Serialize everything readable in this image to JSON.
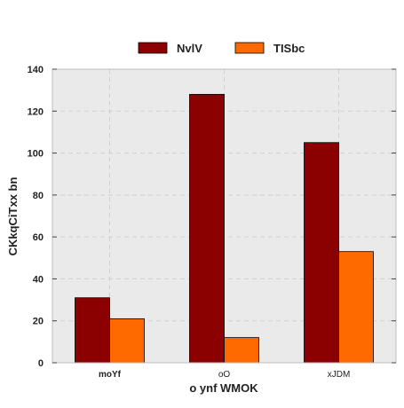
{
  "chart_data": {
    "type": "bar",
    "title": "",
    "xlabel": "o ynf WMOK",
    "ylabel": "CKkqCiTxx bn",
    "categories": [
      "moYf",
      "oO",
      "xJDM"
    ],
    "series": [
      {
        "name": "NvlV",
        "values": [
          31,
          128,
          105
        ],
        "color": "#8b0000"
      },
      {
        "name": "TISbc",
        "values": [
          21,
          12,
          53
        ],
        "color": "#ff6a00"
      }
    ],
    "ylim": [
      0,
      140
    ],
    "yticks": [
      0,
      20,
      40,
      60,
      80,
      100,
      120,
      140
    ],
    "grid": true,
    "legend_position": "top-center",
    "plot_background": "#eaeaea"
  }
}
